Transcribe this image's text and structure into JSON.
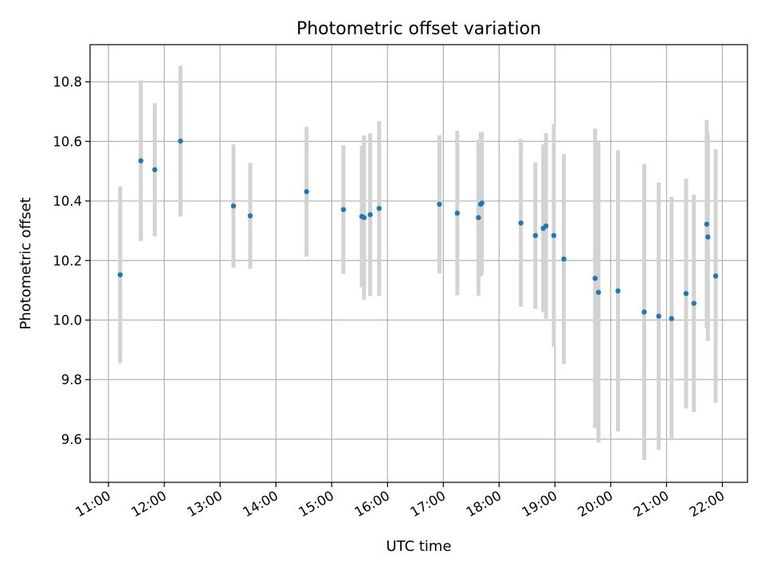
{
  "chart_data": {
    "type": "scatter",
    "title": "Photometric offset variation",
    "xlabel": "UTC time",
    "ylabel": "Photometric offset",
    "x_unit": "hours UTC",
    "xlim": [
      10.67,
      22.45
    ],
    "ylim": [
      9.455,
      10.925
    ],
    "grid": true,
    "legend": "none",
    "colors": {
      "point": "#1f77b4",
      "errorbar": "#d3d3d3"
    },
    "x_ticks": [
      {
        "value": 11,
        "label": "11:00"
      },
      {
        "value": 12,
        "label": "12:00"
      },
      {
        "value": 13,
        "label": "13:00"
      },
      {
        "value": 14,
        "label": "14:00"
      },
      {
        "value": 15,
        "label": "15:00"
      },
      {
        "value": 16,
        "label": "16:00"
      },
      {
        "value": 17,
        "label": "17:00"
      },
      {
        "value": 18,
        "label": "18:00"
      },
      {
        "value": 19,
        "label": "19:00"
      },
      {
        "value": 20,
        "label": "20:00"
      },
      {
        "value": 21,
        "label": "21:00"
      },
      {
        "value": 22,
        "label": "22:00"
      }
    ],
    "y_ticks": [
      {
        "value": 9.6,
        "label": "9.6"
      },
      {
        "value": 9.8,
        "label": "9.8"
      },
      {
        "value": 10.0,
        "label": "10.0"
      },
      {
        "value": 10.2,
        "label": "10.2"
      },
      {
        "value": 10.4,
        "label": "10.4"
      },
      {
        "value": 10.6,
        "label": "10.6"
      },
      {
        "value": 10.8,
        "label": "10.8"
      }
    ],
    "points": [
      {
        "x": 11.21,
        "y": 10.152,
        "err": 0.297
      },
      {
        "x": 11.58,
        "y": 10.535,
        "err": 0.27
      },
      {
        "x": 11.83,
        "y": 10.505,
        "err": 0.224
      },
      {
        "x": 12.29,
        "y": 10.601,
        "err": 0.253
      },
      {
        "x": 13.24,
        "y": 10.383,
        "err": 0.207
      },
      {
        "x": 13.54,
        "y": 10.35,
        "err": 0.178
      },
      {
        "x": 14.55,
        "y": 10.431,
        "err": 0.218
      },
      {
        "x": 15.21,
        "y": 10.371,
        "err": 0.216
      },
      {
        "x": 15.54,
        "y": 10.348,
        "err": 0.238
      },
      {
        "x": 15.58,
        "y": 10.344,
        "err": 0.276
      },
      {
        "x": 15.69,
        "y": 10.354,
        "err": 0.273
      },
      {
        "x": 15.85,
        "y": 10.375,
        "err": 0.293
      },
      {
        "x": 16.93,
        "y": 10.389,
        "err": 0.232
      },
      {
        "x": 17.25,
        "y": 10.359,
        "err": 0.276
      },
      {
        "x": 17.63,
        "y": 10.344,
        "err": 0.262
      },
      {
        "x": 17.69,
        "y": 10.393,
        "err": 0.239
      },
      {
        "x": 17.67,
        "y": 10.389,
        "err": 0.242
      },
      {
        "x": 18.39,
        "y": 10.326,
        "err": 0.282
      },
      {
        "x": 18.65,
        "y": 10.284,
        "err": 0.246
      },
      {
        "x": 18.79,
        "y": 10.308,
        "err": 0.282
      },
      {
        "x": 18.84,
        "y": 10.316,
        "err": 0.312
      },
      {
        "x": 18.98,
        "y": 10.284,
        "err": 0.375
      },
      {
        "x": 19.16,
        "y": 10.205,
        "err": 0.353
      },
      {
        "x": 19.72,
        "y": 10.14,
        "err": 0.503
      },
      {
        "x": 19.78,
        "y": 10.093,
        "err": 0.504
      },
      {
        "x": 20.13,
        "y": 10.098,
        "err": 0.472
      },
      {
        "x": 20.6,
        "y": 10.027,
        "err": 0.497
      },
      {
        "x": 20.86,
        "y": 10.013,
        "err": 0.449
      },
      {
        "x": 21.09,
        "y": 10.005,
        "err": 0.409
      },
      {
        "x": 21.35,
        "y": 10.089,
        "err": 0.386
      },
      {
        "x": 21.49,
        "y": 10.056,
        "err": 0.365
      },
      {
        "x": 21.72,
        "y": 10.322,
        "err": 0.35
      },
      {
        "x": 21.74,
        "y": 10.279,
        "err": 0.349
      },
      {
        "x": 21.88,
        "y": 10.148,
        "err": 0.426
      }
    ]
  }
}
